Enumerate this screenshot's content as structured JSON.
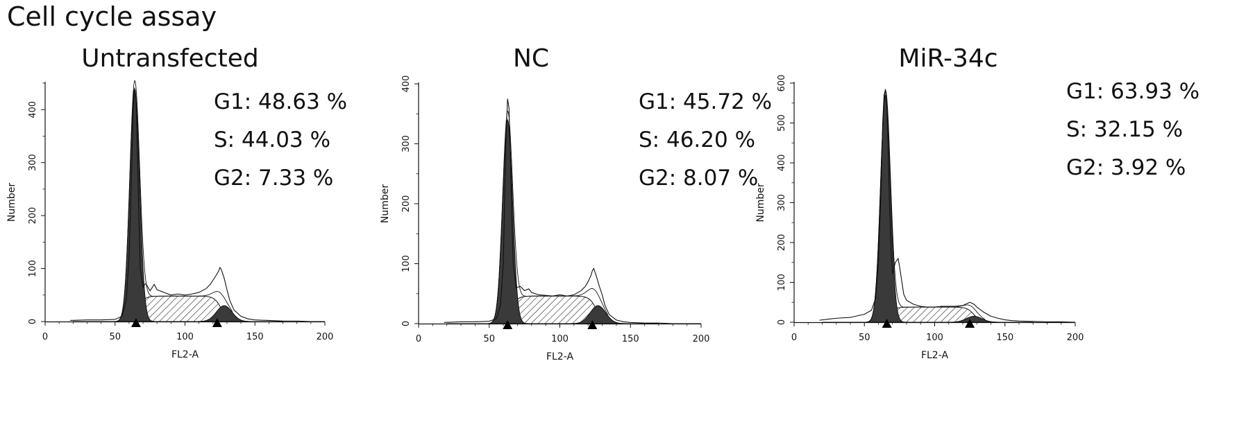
{
  "figure": {
    "title": "Cell cycle assay"
  },
  "colors": {
    "g1_fill": "#3a3a3a",
    "s_hatch": "#222222",
    "line": "#111111",
    "background": "#ffffff"
  },
  "chart_data": [
    {
      "type": "area",
      "title": "Untransfected",
      "xlabel": "FL2-A",
      "ylabel": "Number",
      "xlim": [
        0,
        200
      ],
      "ylim": [
        0,
        450
      ],
      "xticks": [
        0,
        50,
        100,
        150,
        200
      ],
      "yticks": [
        0,
        100,
        200,
        300,
        400
      ],
      "annotations": [
        "G1: 48.63 %",
        "S: 44.03 %",
        "G2: 7.33 %"
      ],
      "markers_x": [
        65,
        123
      ],
      "phases": {
        "G1": {
          "center": 64,
          "sd": 3.5,
          "height": 440
        },
        "S": {
          "start": 66,
          "end": 126,
          "height": 48
        },
        "G2": {
          "center": 128,
          "sd": 5.5,
          "height": 30
        }
      },
      "series": [
        {
          "x": [
            18,
            30,
            40,
            50,
            55,
            58,
            60,
            62,
            63,
            64,
            65,
            66,
            67,
            68,
            70,
            72,
            75,
            78,
            80,
            85,
            90,
            95,
            100,
            105,
            110,
            115,
            118,
            120,
            122,
            124,
            125,
            126,
            127,
            128,
            130,
            132,
            135,
            140,
            145,
            150,
            160,
            170,
            180,
            190,
            200
          ],
          "y": [
            2,
            3,
            3,
            4,
            10,
            40,
            120,
            300,
            400,
            440,
            420,
            320,
            200,
            100,
            65,
            72,
            58,
            70,
            60,
            55,
            50,
            52,
            50,
            52,
            55,
            62,
            70,
            78,
            86,
            95,
            102,
            98,
            90,
            82,
            60,
            40,
            22,
            10,
            5,
            3,
            2,
            1,
            1,
            0,
            0
          ]
        }
      ]
    },
    {
      "type": "area",
      "title": "NC",
      "xlabel": "FL2-A",
      "ylabel": "Number",
      "xlim": [
        0,
        200
      ],
      "ylim": [
        0,
        400
      ],
      "xticks": [
        0,
        50,
        100,
        150,
        200
      ],
      "yticks": [
        0,
        100,
        200,
        300,
        400
      ],
      "annotations": [
        "G1: 45.72 %",
        "S: 46.20 %",
        "G2: 8.07 %"
      ],
      "markers_x": [
        63,
        123
      ],
      "phases": {
        "G1": {
          "center": 63,
          "sd": 3.5,
          "height": 340
        },
        "S": {
          "start": 65,
          "end": 126,
          "height": 46
        },
        "G2": {
          "center": 127,
          "sd": 5.5,
          "height": 30
        }
      },
      "series": [
        {
          "x": [
            18,
            30,
            40,
            50,
            55,
            58,
            60,
            61,
            62,
            63,
            64,
            65,
            66,
            67,
            69,
            72,
            75,
            78,
            80,
            85,
            90,
            95,
            100,
            105,
            110,
            115,
            118,
            120,
            122,
            123,
            124,
            125,
            126,
            127,
            128,
            130,
            132,
            135,
            140,
            145,
            150,
            160,
            170,
            180,
            190,
            200
          ],
          "y": [
            2,
            3,
            3,
            4,
            8,
            30,
            100,
            220,
            320,
            375,
            360,
            280,
            180,
            100,
            60,
            62,
            55,
            58,
            52,
            48,
            47,
            46,
            48,
            46,
            48,
            55,
            62,
            70,
            80,
            88,
            92,
            85,
            78,
            70,
            62,
            48,
            30,
            15,
            6,
            3,
            2,
            1,
            1,
            0,
            0,
            0
          ]
        }
      ]
    },
    {
      "type": "area",
      "title": "MiR-34c",
      "xlabel": "FL2-A",
      "ylabel": "Number",
      "xlim": [
        0,
        200
      ],
      "ylim": [
        0,
        600
      ],
      "xticks": [
        0,
        50,
        100,
        150,
        200
      ],
      "yticks": [
        0,
        100,
        200,
        300,
        400,
        500,
        600
      ],
      "annotations": [
        "G1: 63.93 %",
        "S: 32.15 %",
        "G2: 3.92 %"
      ],
      "markers_x": [
        66,
        125
      ],
      "phases": {
        "G1": {
          "center": 65,
          "sd": 3.5,
          "height": 570
        },
        "S": {
          "start": 67,
          "end": 128,
          "height": 38
        },
        "G2": {
          "center": 128,
          "sd": 5.5,
          "height": 15
        }
      },
      "series": [
        {
          "x": [
            18,
            25,
            30,
            40,
            50,
            55,
            58,
            60,
            62,
            63,
            64,
            65,
            66,
            67,
            68,
            69,
            70,
            72,
            74,
            75,
            78,
            80,
            85,
            90,
            95,
            100,
            105,
            110,
            115,
            120,
            125,
            128,
            130,
            135,
            140,
            145,
            150,
            155,
            160,
            170,
            180,
            190,
            200
          ],
          "y": [
            5,
            8,
            10,
            12,
            20,
            30,
            60,
            150,
            350,
            500,
            570,
            585,
            540,
            420,
            280,
            180,
            120,
            150,
            160,
            140,
            70,
            55,
            45,
            40,
            38,
            38,
            40,
            40,
            40,
            42,
            50,
            45,
            38,
            25,
            15,
            10,
            6,
            4,
            3,
            2,
            1,
            1,
            0
          ]
        }
      ]
    }
  ]
}
